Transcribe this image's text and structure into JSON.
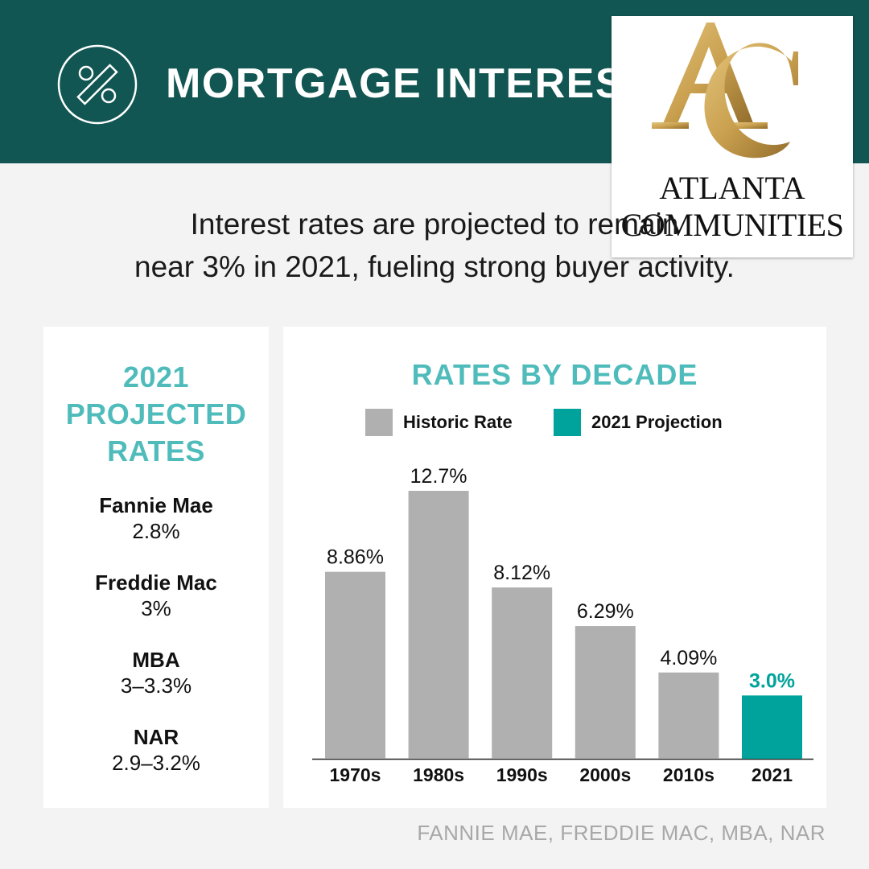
{
  "header": {
    "title": "MORTGAGE INTEREST",
    "icon": "percent-icon"
  },
  "logo": {
    "monogram": "AC",
    "line1": "ATLANTA",
    "line2": "COMMUNITIES",
    "gold": "#c9a04f"
  },
  "subtitle": {
    "line1": "Interest rates are projected to remain",
    "line2": "near 3% in 2021, fueling strong buyer activity."
  },
  "projected": {
    "title_lines": [
      "2021",
      "PROJECTED",
      "RATES"
    ],
    "items": [
      {
        "name": "Fannie Mae",
        "value": "2.8%"
      },
      {
        "name": "Freddie Mac",
        "value": "3%"
      },
      {
        "name": "MBA",
        "value": "3–3.3%"
      },
      {
        "name": "NAR",
        "value": "2.9–3.2%"
      }
    ]
  },
  "chart_data": {
    "type": "bar",
    "title": "RATES BY DECADE",
    "categories": [
      "1970s",
      "1980s",
      "1990s",
      "2000s",
      "2010s",
      "2021"
    ],
    "values": [
      8.86,
      12.7,
      8.12,
      6.29,
      4.09,
      3.0
    ],
    "labels": [
      "8.86%",
      "12.7%",
      "8.12%",
      "6.29%",
      "4.09%",
      "3.0%"
    ],
    "series_index": [
      0,
      0,
      0,
      0,
      0,
      1
    ],
    "legend": [
      {
        "name": "Historic Rate",
        "color": "#b0b0b0"
      },
      {
        "name": "2021 Projection",
        "color": "#00a39b"
      }
    ],
    "ylim": [
      0,
      12.7
    ],
    "grid": false,
    "legend_position": "top"
  },
  "colors": {
    "header_bg": "#115652",
    "accent": "#4fbcbb",
    "historic": "#b0b0b0",
    "projection": "#00a39b",
    "projection_label": "#00a39b"
  },
  "source": "FANNIE MAE, FREDDIE MAC, MBA, NAR"
}
